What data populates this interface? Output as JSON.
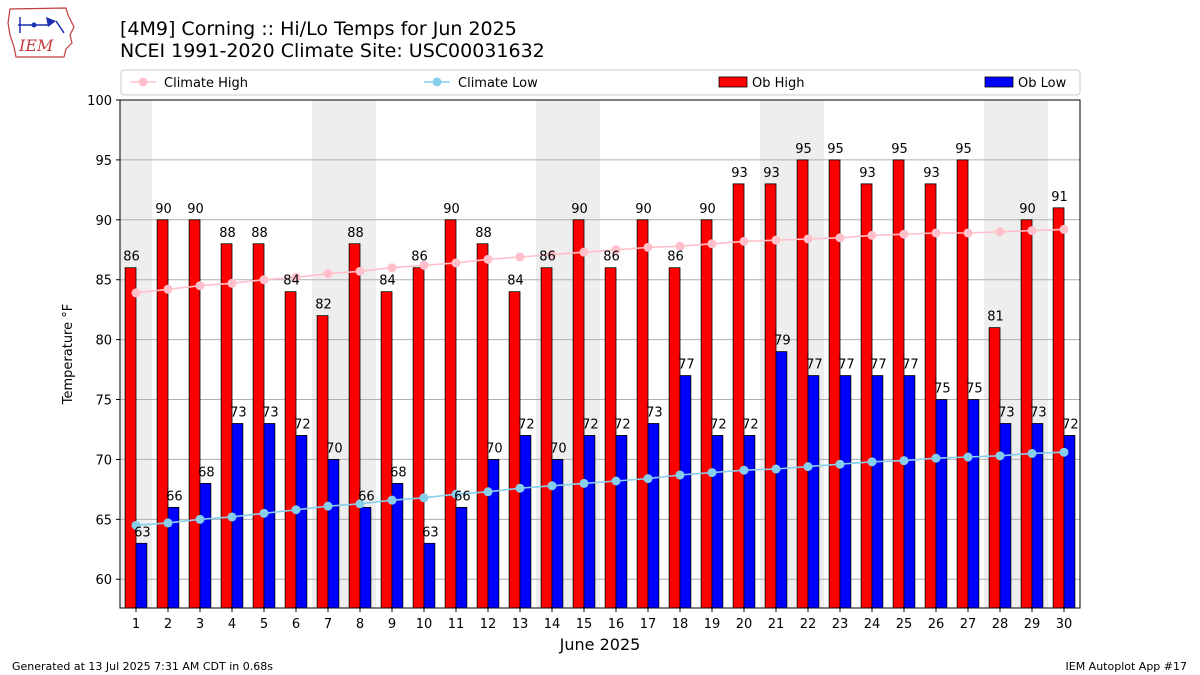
{
  "header": {
    "title_line1": "[4M9] Corning :: Hi/Lo Temps for Jun 2025",
    "title_line2": "NCEI 1991-2020 Climate Site: USC00031632",
    "logo_text": "IEM"
  },
  "footer": {
    "generated": "Generated at 13 Jul 2025 7:31 AM CDT in 0.68s",
    "app": "IEM Autoplot App #17"
  },
  "colors": {
    "ob_high": "#ff0000",
    "ob_low": "#0000ff",
    "climate_high": "#ffc0cb",
    "climate_low": "#87ceeb",
    "weekend_shade": "#eeeeee",
    "grid": "#b0b0b0"
  },
  "chart_data": {
    "type": "bar",
    "xlabel": "June 2025",
    "ylabel": "Temperature °F",
    "ylim": [
      57.6,
      100
    ],
    "yticks": [
      60,
      65,
      70,
      75,
      80,
      85,
      90,
      95,
      100
    ],
    "grid": "horizontal",
    "legend_placement": "top",
    "categories": [
      "1",
      "2",
      "3",
      "4",
      "5",
      "6",
      "7",
      "8",
      "9",
      "10",
      "11",
      "12",
      "13",
      "14",
      "15",
      "16",
      "17",
      "18",
      "19",
      "20",
      "21",
      "22",
      "23",
      "24",
      "25",
      "26",
      "27",
      "28",
      "29",
      "30"
    ],
    "shaded_days": [
      1,
      7,
      8,
      14,
      15,
      21,
      22,
      28,
      29
    ],
    "series": [
      {
        "name": "Ob High",
        "kind": "bar",
        "values": [
          86,
          90,
          90,
          88,
          88,
          84,
          82,
          88,
          84,
          86,
          90,
          88,
          84,
          86,
          90,
          86,
          90,
          86,
          90,
          93,
          93,
          95,
          95,
          93,
          95,
          93,
          95,
          81,
          90,
          91
        ]
      },
      {
        "name": "Ob Low",
        "kind": "bar",
        "values": [
          63,
          66,
          68,
          73,
          73,
          72,
          70,
          66,
          68,
          63,
          66,
          70,
          72,
          70,
          72,
          72,
          73,
          77,
          72,
          72,
          79,
          77,
          77,
          77,
          77,
          75,
          75,
          73,
          73,
          72
        ]
      },
      {
        "name": "Climate High",
        "kind": "line",
        "values": [
          83.9,
          84.2,
          84.5,
          84.7,
          85.0,
          85.2,
          85.5,
          85.7,
          86.0,
          86.2,
          86.4,
          86.7,
          86.9,
          87.1,
          87.3,
          87.5,
          87.7,
          87.8,
          88.0,
          88.2,
          88.3,
          88.4,
          88.5,
          88.7,
          88.8,
          88.9,
          88.9,
          89.0,
          89.1,
          89.2
        ]
      },
      {
        "name": "Climate Low",
        "kind": "line",
        "values": [
          64.5,
          64.7,
          65.0,
          65.2,
          65.5,
          65.8,
          66.1,
          66.3,
          66.6,
          66.8,
          67.1,
          67.3,
          67.6,
          67.8,
          68.0,
          68.2,
          68.4,
          68.7,
          68.9,
          69.1,
          69.2,
          69.4,
          69.6,
          69.8,
          69.9,
          70.1,
          70.2,
          70.3,
          70.5,
          70.6
        ]
      }
    ]
  }
}
